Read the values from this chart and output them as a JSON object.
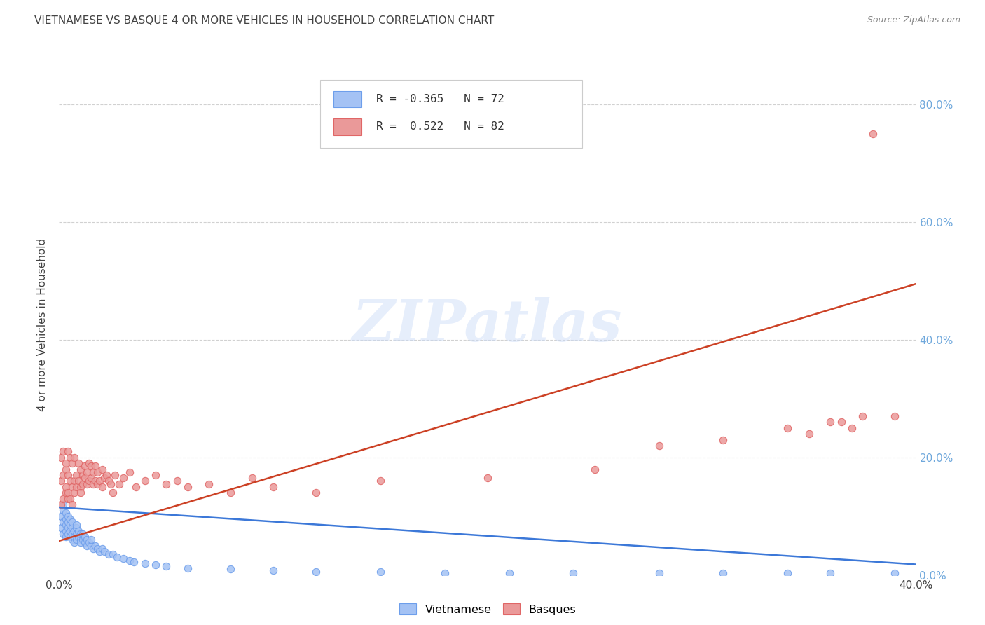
{
  "title": "VIETNAMESE VS BASQUE 4 OR MORE VEHICLES IN HOUSEHOLD CORRELATION CHART",
  "source": "Source: ZipAtlas.com",
  "ylabel": "4 or more Vehicles in Household",
  "xlim": [
    0.0,
    0.4
  ],
  "ylim": [
    0.0,
    0.85
  ],
  "x_ticks": [
    0.0,
    0.1,
    0.2,
    0.3,
    0.4
  ],
  "x_tick_labels": [
    "0.0%",
    "",
    "",
    "",
    "40.0%"
  ],
  "y_ticks": [
    0.0,
    0.2,
    0.4,
    0.6,
    0.8
  ],
  "y_tick_labels_right": [
    "0.0%",
    "20.0%",
    "40.0%",
    "60.0%",
    "80.0%"
  ],
  "vietnamese_R": -0.365,
  "vietnamese_N": 72,
  "basque_R": 0.522,
  "basque_N": 82,
  "legend_label_vietnamese": "Vietnamese",
  "legend_label_basque": "Basques",
  "vietnamese_color": "#a4c2f4",
  "basque_color": "#ea9999",
  "vietnamese_edge_color": "#6d9eeb",
  "basque_edge_color": "#e06666",
  "vietnamese_line_color": "#3c78d8",
  "basque_line_color": "#cc4125",
  "watermark_text": "ZIPatlas",
  "background_color": "#ffffff",
  "grid_color": "#cccccc",
  "title_color": "#434343",
  "axis_label_color": "#434343",
  "right_tick_color": "#6fa8dc",
  "viet_line_x0": 0.0,
  "viet_line_y0": 0.115,
  "viet_line_x1": 0.4,
  "viet_line_y1": 0.018,
  "basque_line_x0": 0.0,
  "basque_line_y0": 0.058,
  "basque_line_x1": 0.4,
  "basque_line_y1": 0.495,
  "viet_scatter_x": [
    0.001,
    0.001,
    0.002,
    0.002,
    0.002,
    0.002,
    0.003,
    0.003,
    0.003,
    0.003,
    0.003,
    0.004,
    0.004,
    0.004,
    0.004,
    0.005,
    0.005,
    0.005,
    0.005,
    0.006,
    0.006,
    0.006,
    0.006,
    0.007,
    0.007,
    0.007,
    0.008,
    0.008,
    0.008,
    0.008,
    0.009,
    0.009,
    0.01,
    0.01,
    0.01,
    0.011,
    0.011,
    0.012,
    0.012,
    0.013,
    0.013,
    0.014,
    0.015,
    0.015,
    0.016,
    0.017,
    0.018,
    0.019,
    0.02,
    0.021,
    0.023,
    0.025,
    0.027,
    0.03,
    0.033,
    0.035,
    0.04,
    0.045,
    0.05,
    0.06,
    0.08,
    0.1,
    0.12,
    0.15,
    0.18,
    0.21,
    0.24,
    0.28,
    0.31,
    0.34,
    0.36,
    0.39
  ],
  "viet_scatter_y": [
    0.1,
    0.08,
    0.12,
    0.09,
    0.07,
    0.11,
    0.085,
    0.095,
    0.075,
    0.105,
    0.065,
    0.08,
    0.09,
    0.07,
    0.1,
    0.075,
    0.085,
    0.065,
    0.095,
    0.07,
    0.08,
    0.06,
    0.09,
    0.065,
    0.075,
    0.055,
    0.07,
    0.08,
    0.06,
    0.085,
    0.065,
    0.075,
    0.06,
    0.07,
    0.055,
    0.06,
    0.07,
    0.055,
    0.065,
    0.05,
    0.06,
    0.055,
    0.05,
    0.06,
    0.045,
    0.05,
    0.045,
    0.04,
    0.045,
    0.04,
    0.035,
    0.035,
    0.03,
    0.028,
    0.025,
    0.022,
    0.02,
    0.018,
    0.015,
    0.012,
    0.01,
    0.008,
    0.005,
    0.005,
    0.003,
    0.003,
    0.003,
    0.003,
    0.003,
    0.003,
    0.003,
    0.003
  ],
  "basque_scatter_x": [
    0.001,
    0.001,
    0.001,
    0.002,
    0.002,
    0.002,
    0.003,
    0.003,
    0.003,
    0.003,
    0.004,
    0.004,
    0.004,
    0.004,
    0.005,
    0.005,
    0.005,
    0.006,
    0.006,
    0.006,
    0.007,
    0.007,
    0.007,
    0.008,
    0.008,
    0.009,
    0.009,
    0.01,
    0.01,
    0.01,
    0.011,
    0.011,
    0.012,
    0.012,
    0.013,
    0.013,
    0.014,
    0.014,
    0.015,
    0.015,
    0.016,
    0.016,
    0.017,
    0.017,
    0.018,
    0.018,
    0.019,
    0.02,
    0.02,
    0.021,
    0.022,
    0.023,
    0.024,
    0.025,
    0.026,
    0.028,
    0.03,
    0.033,
    0.036,
    0.04,
    0.045,
    0.05,
    0.055,
    0.06,
    0.07,
    0.08,
    0.09,
    0.1,
    0.12,
    0.15,
    0.2,
    0.25,
    0.28,
    0.31,
    0.34,
    0.35,
    0.36,
    0.365,
    0.37,
    0.375,
    0.38,
    0.39
  ],
  "basque_scatter_y": [
    0.12,
    0.16,
    0.2,
    0.13,
    0.17,
    0.21,
    0.14,
    0.18,
    0.15,
    0.19,
    0.13,
    0.17,
    0.21,
    0.14,
    0.16,
    0.2,
    0.13,
    0.15,
    0.19,
    0.12,
    0.16,
    0.2,
    0.14,
    0.17,
    0.15,
    0.16,
    0.19,
    0.15,
    0.18,
    0.14,
    0.17,
    0.155,
    0.165,
    0.185,
    0.155,
    0.175,
    0.16,
    0.19,
    0.165,
    0.185,
    0.155,
    0.175,
    0.16,
    0.185,
    0.155,
    0.175,
    0.16,
    0.15,
    0.18,
    0.165,
    0.17,
    0.16,
    0.155,
    0.14,
    0.17,
    0.155,
    0.165,
    0.175,
    0.15,
    0.16,
    0.17,
    0.155,
    0.16,
    0.15,
    0.155,
    0.14,
    0.165,
    0.15,
    0.14,
    0.16,
    0.165,
    0.18,
    0.22,
    0.23,
    0.25,
    0.24,
    0.26,
    0.26,
    0.25,
    0.27,
    0.75,
    0.27
  ]
}
